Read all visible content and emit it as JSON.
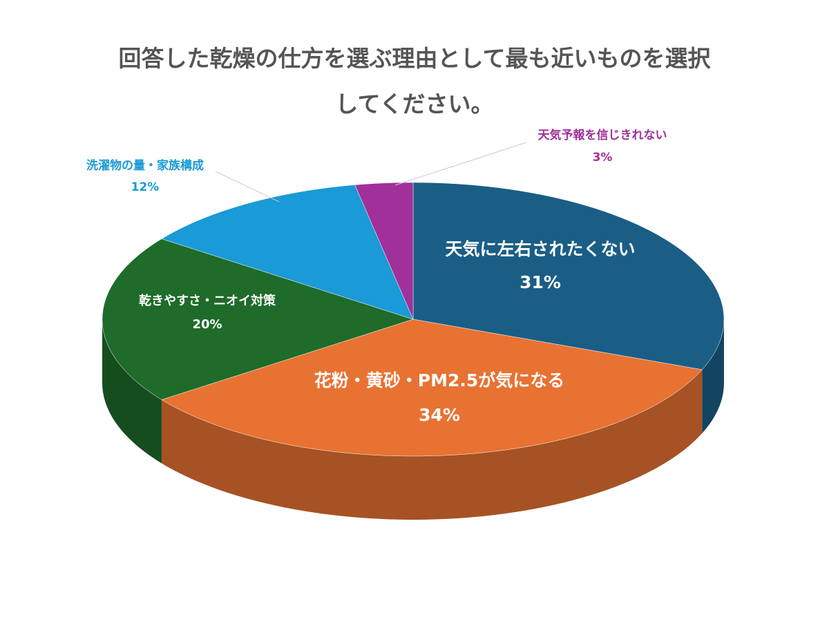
{
  "chart_data": {
    "type": "pie3d",
    "title": "回答した乾燥の仕方を選ぶ理由として最も近いものを選択してください。",
    "categories": [
      "天気に左右されたくない",
      "花粉・黄砂・PM2.5が気になる",
      "乾きやすさ・ニオイ対策",
      "洗濯物の量・家族構成",
      "天気予報を信じきれない"
    ],
    "values": [
      31,
      34,
      20,
      12,
      3
    ],
    "value_labels": [
      "31%",
      "34%",
      "20%",
      "12%",
      "3%"
    ],
    "colors": [
      "#1a5e86",
      "#e87232",
      "#1e6b2a",
      "#1a9ad6",
      "#a0309a"
    ]
  }
}
